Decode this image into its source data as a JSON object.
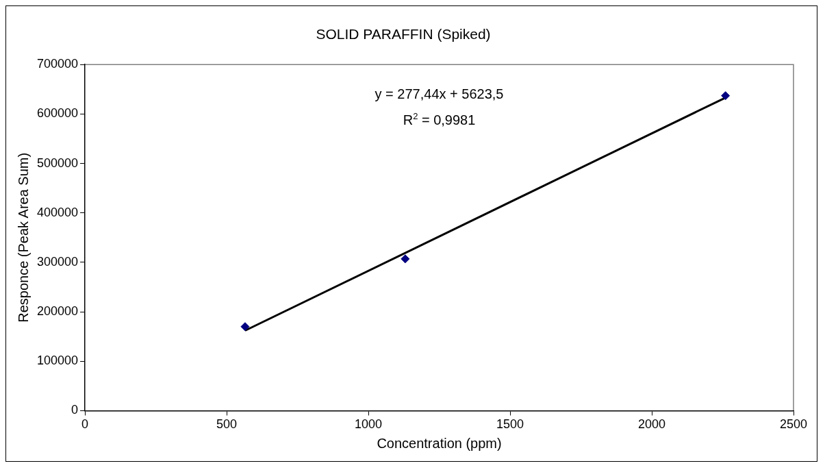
{
  "chart_data": {
    "type": "scatter",
    "title": "SOLID PARAFFIN (Spiked)",
    "xlabel": "Concentration (ppm)",
    "ylabel": "Responce (Peak Area Sum)",
    "xlim": [
      0,
      2500
    ],
    "xticks": [
      0,
      500,
      1000,
      1500,
      2000,
      2500
    ],
    "ylim": [
      0,
      700000
    ],
    "yticks": [
      0,
      100000,
      200000,
      300000,
      400000,
      500000,
      600000,
      700000
    ],
    "series": [
      {
        "x": [
          565,
          1130,
          2260
        ],
        "values": [
          170000,
          307000,
          637000
        ],
        "color": "#000080",
        "marker": "diamond"
      },
      {
        "type": "line",
        "x": [
          565,
          2260
        ],
        "values": [
          162000,
          633000
        ],
        "color": "#000000",
        "marker": "none",
        "line_style": "solid"
      }
    ],
    "annotations": [
      "y = 277,44x + 5623,5",
      "R$^{2}$ = 0,9981"
    ]
  }
}
